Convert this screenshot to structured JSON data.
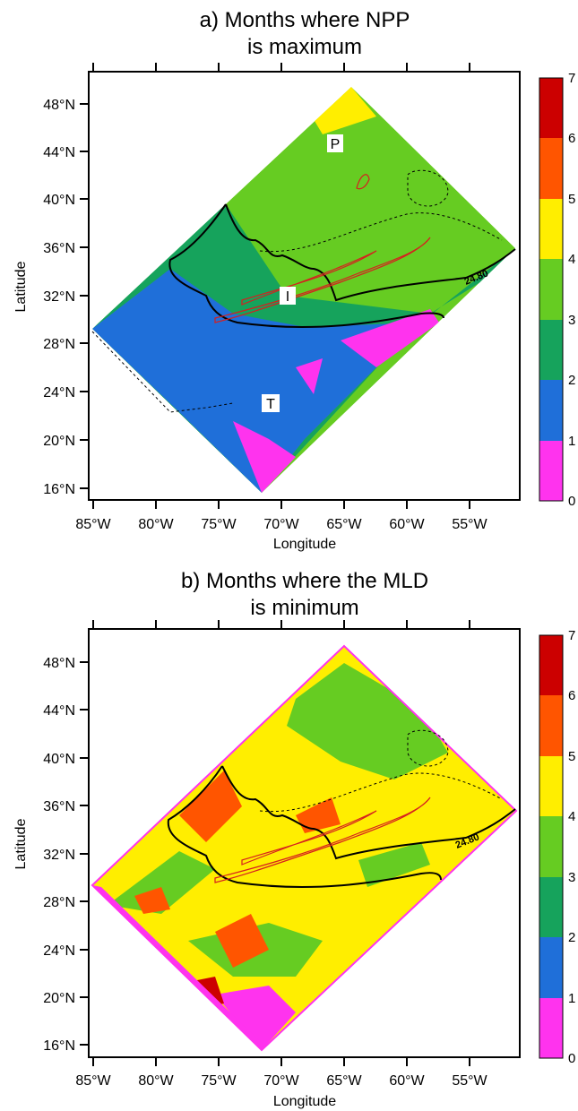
{
  "panels": [
    {
      "id": "a",
      "title_line1": "a) Months where NPP",
      "title_line2": "is maximum",
      "xlabel": "Longitude",
      "ylabel": "Latitude",
      "xticks": [
        "85°W",
        "80°W",
        "75°W",
        "70°W",
        "65°W",
        "60°W",
        "55°W"
      ],
      "yticks": [
        "48°N",
        "44°N",
        "40°N",
        "36°N",
        "32°N",
        "28°N",
        "24°N",
        "20°N",
        "16°N"
      ],
      "region_labels": [
        "P",
        "I",
        "T"
      ],
      "isopycnal_label": "24.80",
      "colorbar_ticks": [
        "0",
        "1",
        "2",
        "3",
        "4",
        "5",
        "6",
        "7"
      ]
    },
    {
      "id": "b",
      "title_line1": "b) Months where the MLD",
      "title_line2": "is minimum",
      "xlabel": "Longitude",
      "ylabel": "Latitude",
      "xticks": [
        "85°W",
        "80°W",
        "75°W",
        "70°W",
        "65°W",
        "60°W",
        "55°W"
      ],
      "yticks": [
        "48°N",
        "44°N",
        "40°N",
        "36°N",
        "32°N",
        "28°N",
        "24°N",
        "20°N",
        "16°N"
      ],
      "isopycnal_label": "24.80",
      "colorbar_ticks": [
        "0",
        "1",
        "2",
        "3",
        "4",
        "5",
        "6",
        "7"
      ]
    }
  ],
  "colorbar_colors": [
    "#ff33ee",
    "#1f6fd9",
    "#16a35c",
    "#66cc22",
    "#ffee00",
    "#ff5500",
    "#cc0000"
  ],
  "map_axes": {
    "lon_range": [
      -85,
      -51
    ],
    "lat_range": [
      15,
      50
    ]
  },
  "region_outline": {
    "lons": [
      -85,
      -65,
      -52,
      -72
    ],
    "lats": [
      29.2,
      49.2,
      35.7,
      15.8
    ]
  }
}
